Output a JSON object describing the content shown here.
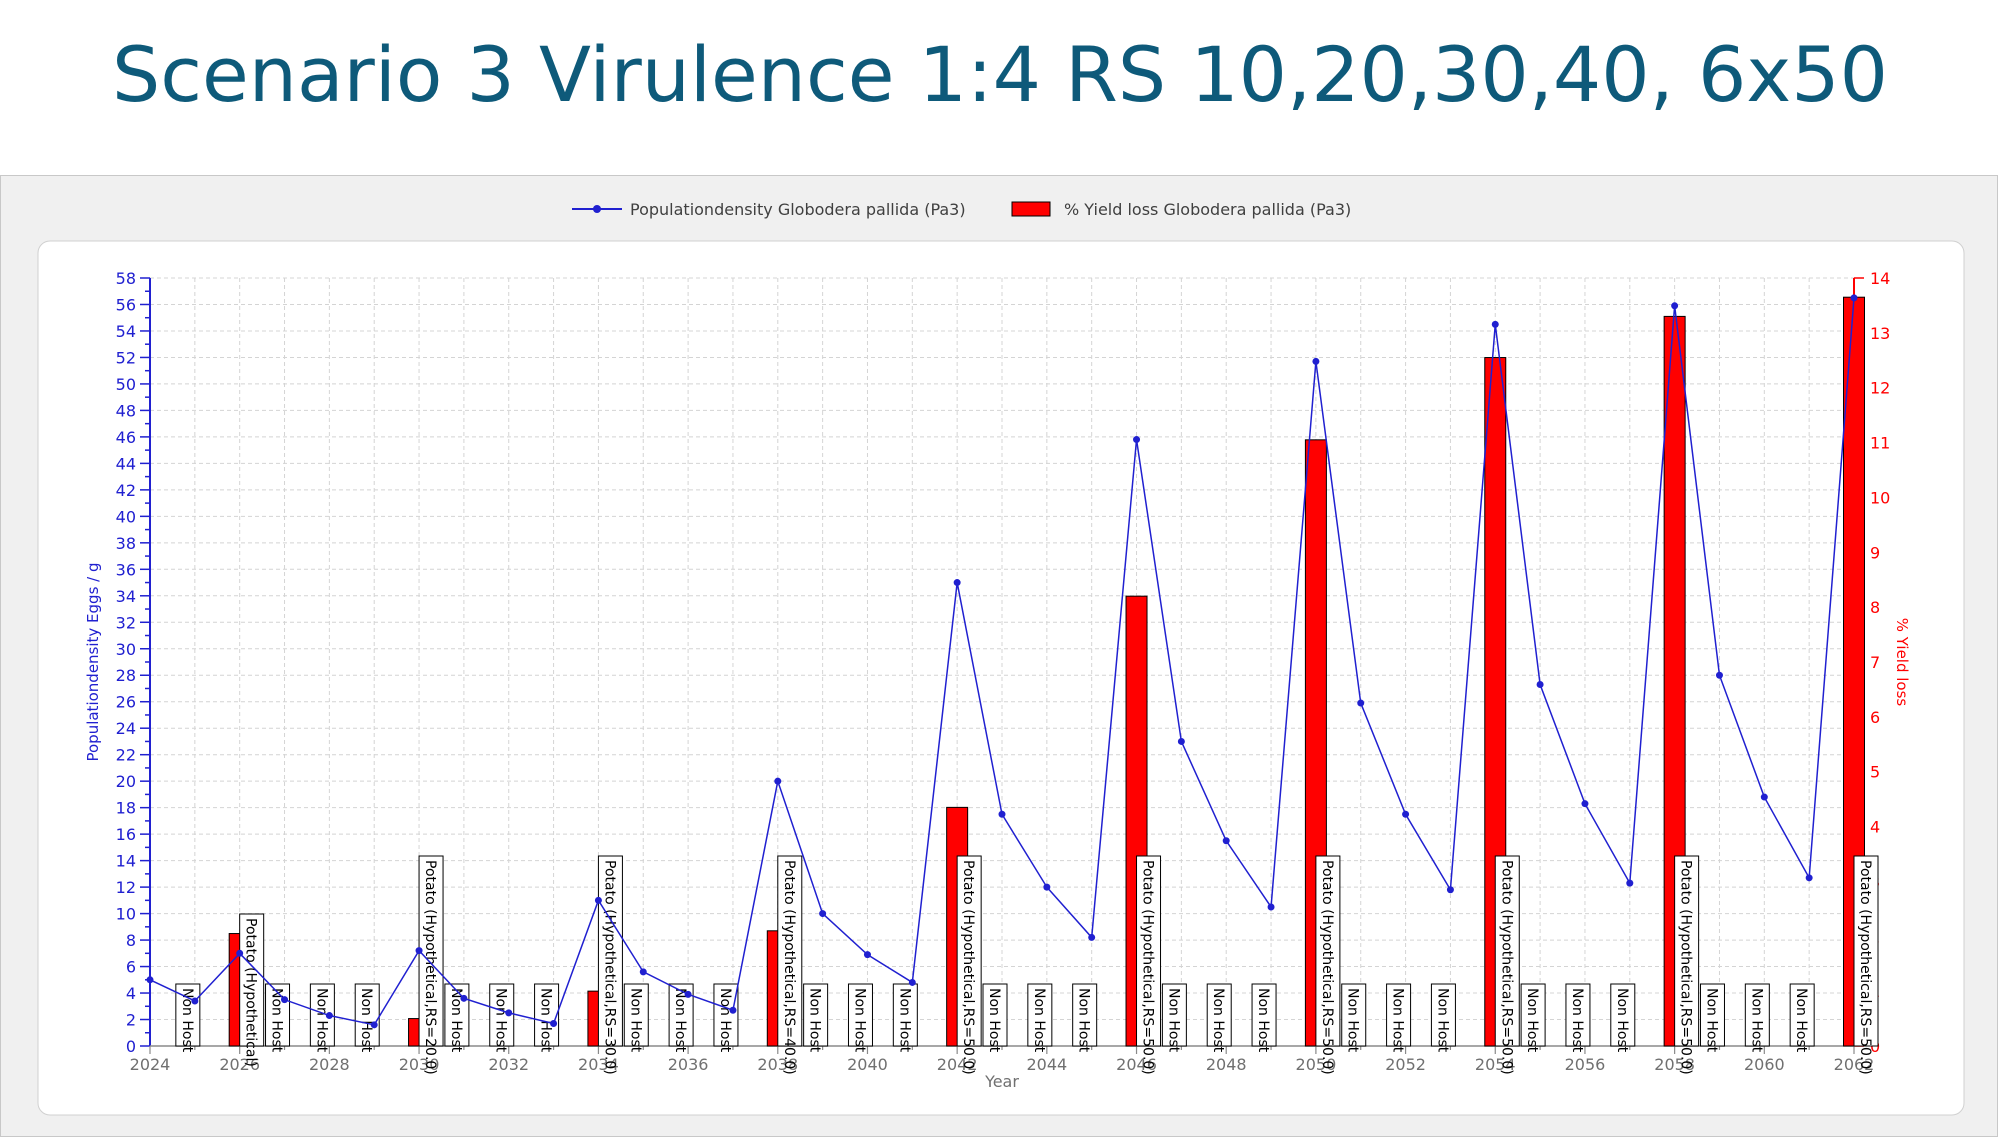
{
  "slide": {
    "title": "Scenario 3 Virulence 1:4 RS 10,20,30,40, 6x50"
  },
  "chart_data": {
    "type": "bar+line",
    "xlabel": "Year",
    "ylabel_left": "Populationdensity Eggs / g",
    "ylabel_right": "% Yield loss",
    "xlim": [
      2024,
      2062
    ],
    "ylim_left": [
      0,
      58
    ],
    "ylim_right": [
      0,
      14
    ],
    "x_ticks": [
      2024,
      2026,
      2028,
      2030,
      2032,
      2034,
      2036,
      2038,
      2040,
      2042,
      2044,
      2046,
      2048,
      2050,
      2052,
      2054,
      2056,
      2058,
      2060,
      2062
    ],
    "y_left_ticks": [
      0,
      2,
      4,
      6,
      8,
      10,
      12,
      14,
      16,
      18,
      20,
      22,
      24,
      26,
      28,
      30,
      32,
      34,
      36,
      38,
      40,
      42,
      44,
      46,
      48,
      50,
      52,
      54,
      56,
      58
    ],
    "y_right_ticks": [
      0,
      1,
      2,
      3,
      4,
      5,
      6,
      7,
      8,
      9,
      10,
      11,
      12,
      13,
      14
    ],
    "grid": true,
    "legend_position": "top-center",
    "colors": {
      "line": "#2020d0",
      "bar": "#ff0000",
      "right_axis": "#ff0000",
      "left_axis": "#2020d0"
    },
    "series": [
      {
        "name": "Populationdensity Globodera pallida (Pa3)",
        "type": "line",
        "axis": "left",
        "x": [
          2024,
          2025,
          2026,
          2027,
          2028,
          2029,
          2030,
          2031,
          2032,
          2033,
          2034,
          2035,
          2036,
          2037,
          2038,
          2039,
          2040,
          2041,
          2042,
          2043,
          2044,
          2045,
          2046,
          2047,
          2048,
          2049,
          2050,
          2051,
          2052,
          2053,
          2054,
          2055,
          2056,
          2057,
          2058,
          2059,
          2060,
          2061,
          2062
        ],
        "values": [
          5.0,
          3.4,
          7.0,
          3.5,
          2.3,
          1.6,
          7.2,
          3.6,
          2.5,
          1.7,
          11.0,
          5.6,
          3.9,
          2.7,
          20.0,
          10.0,
          6.9,
          4.8,
          35.0,
          17.5,
          12.0,
          8.2,
          45.8,
          23.0,
          15.5,
          10.5,
          51.7,
          25.9,
          17.5,
          11.8,
          54.5,
          27.3,
          18.3,
          12.3,
          55.9,
          28.0,
          18.8,
          12.7,
          56.5
        ]
      },
      {
        "name": "% Yield loss Globodera pallida (Pa3)",
        "type": "bar",
        "axis": "right",
        "x": [
          2026,
          2030,
          2034,
          2038,
          2042,
          2046,
          2050,
          2054,
          2058,
          2062
        ],
        "values": [
          2.05,
          0.5,
          1.0,
          2.1,
          4.35,
          8.2,
          11.05,
          12.55,
          13.3,
          13.65
        ]
      }
    ],
    "annotations": [
      {
        "year": 2025,
        "text": "Non Host"
      },
      {
        "year": 2026,
        "text": "Potato (Hypothetical)"
      },
      {
        "year": 2027,
        "text": "Non Host"
      },
      {
        "year": 2028,
        "text": "Non Host"
      },
      {
        "year": 2029,
        "text": "Non Host"
      },
      {
        "year": 2030,
        "text": "Potato (Hypothetical,RS=20.0)"
      },
      {
        "year": 2031,
        "text": "Non Host"
      },
      {
        "year": 2032,
        "text": "Non Host"
      },
      {
        "year": 2033,
        "text": "Non Host"
      },
      {
        "year": 2034,
        "text": "Potato (Hypothetical,RS=30.0)"
      },
      {
        "year": 2035,
        "text": "Non Host"
      },
      {
        "year": 2036,
        "text": "Non Host"
      },
      {
        "year": 2037,
        "text": "Non Host"
      },
      {
        "year": 2038,
        "text": "Potato (Hypothetical,RS=40.0)"
      },
      {
        "year": 2039,
        "text": "Non Host"
      },
      {
        "year": 2040,
        "text": "Non Host"
      },
      {
        "year": 2041,
        "text": "Non Host"
      },
      {
        "year": 2042,
        "text": "Potato (Hypothetical,RS=50.0)"
      },
      {
        "year": 2043,
        "text": "Non Host"
      },
      {
        "year": 2044,
        "text": "Non Host"
      },
      {
        "year": 2045,
        "text": "Non Host"
      },
      {
        "year": 2046,
        "text": "Potato (Hypothetical,RS=50.0)"
      },
      {
        "year": 2047,
        "text": "Non Host"
      },
      {
        "year": 2048,
        "text": "Non Host"
      },
      {
        "year": 2049,
        "text": "Non Host"
      },
      {
        "year": 2050,
        "text": "Potato (Hypothetical,RS=50.0)"
      },
      {
        "year": 2051,
        "text": "Non Host"
      },
      {
        "year": 2052,
        "text": "Non Host"
      },
      {
        "year": 2053,
        "text": "Non Host"
      },
      {
        "year": 2054,
        "text": "Potato (Hypothetical,RS=50.0)"
      },
      {
        "year": 2055,
        "text": "Non Host"
      },
      {
        "year": 2056,
        "text": "Non Host"
      },
      {
        "year": 2057,
        "text": "Non Host"
      },
      {
        "year": 2058,
        "text": "Potato (Hypothetical,RS=50.0)"
      },
      {
        "year": 2059,
        "text": "Non Host"
      },
      {
        "year": 2060,
        "text": "Non Host"
      },
      {
        "year": 2061,
        "text": "Non Host"
      },
      {
        "year": 2062,
        "text": "Potato (Hypothetical,RS=50.0)"
      }
    ]
  }
}
